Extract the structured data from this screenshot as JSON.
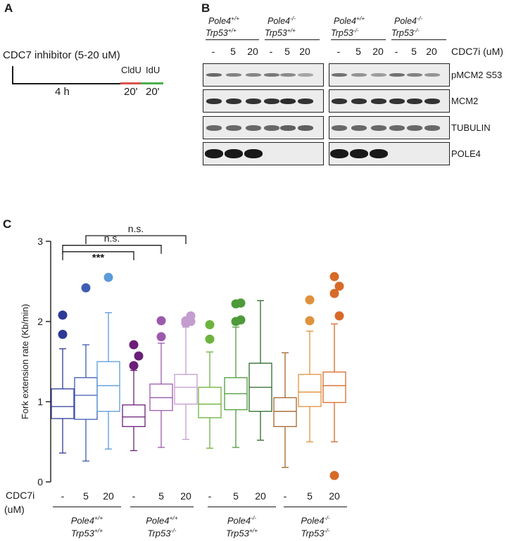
{
  "panel_a": {
    "letter": "A",
    "treatment_label": "CDC7 inhibitor (5-20 uM)",
    "duration_label": "4 h",
    "label_cldu": "CldU",
    "label_idu": "IdU",
    "pulse1": "20'",
    "pulse2": "20'",
    "colors": {
      "cldu": "#d9534f",
      "idu": "#4caf50"
    }
  },
  "panel_b": {
    "letter": "B",
    "genotypes": [
      {
        "pole": "Pole4",
        "pole_sup": "+/+",
        "trp": "Trp53",
        "trp_sup": "+/+"
      },
      {
        "pole": "Pole4",
        "pole_sup": "-/-",
        "trp": "Trp53",
        "trp_sup": "+/+"
      },
      {
        "pole": "Pole4",
        "pole_sup": "+/+",
        "trp": "Trp53",
        "trp_sup": "-/-"
      },
      {
        "pole": "Pole4",
        "pole_sup": "-/-",
        "trp": "Trp53",
        "trp_sup": "-/-"
      }
    ],
    "lanes": [
      "-",
      "5",
      "20",
      "-",
      "5",
      "20",
      "-",
      "5",
      "20",
      "-",
      "5",
      "20"
    ],
    "cdc7i_label": "CDC7i (uM)",
    "blots": [
      {
        "name": "pMCM2 S53",
        "intensities": [
          0.55,
          0.4,
          0.38,
          0.45,
          0.35,
          0.2,
          0.5,
          0.3,
          0.25,
          0.5,
          0.4,
          0.3
        ]
      },
      {
        "name": "MCM2",
        "intensities": [
          0.85,
          0.85,
          0.85,
          0.85,
          0.9,
          0.85,
          0.85,
          0.85,
          0.85,
          0.85,
          0.85,
          0.85
        ]
      },
      {
        "name": "TUBULIN",
        "intensities": [
          0.55,
          0.55,
          0.55,
          0.55,
          0.6,
          0.6,
          0.55,
          0.55,
          0.55,
          0.55,
          0.55,
          0.55
        ]
      },
      {
        "name": "POLE4",
        "intensities": [
          1.0,
          1.0,
          1.0,
          0.0,
          0.0,
          0.0,
          1.0,
          1.0,
          1.0,
          0.0,
          0.0,
          0.0
        ]
      }
    ]
  },
  "panel_c": {
    "letter": "C"
  },
  "chart_data": {
    "type": "boxplot",
    "ylabel": "Fork extension rate (Kb/min)",
    "ylim": [
      0,
      3
    ],
    "yticks": [
      0,
      1,
      2,
      3
    ],
    "x_row_label_1": "CDC7i",
    "x_row_label_2": "(uM)",
    "groups": [
      {
        "pole": "Pole4",
        "pole_sup": "+/+",
        "trp": "Trp53",
        "trp_sup": "+/+"
      },
      {
        "pole": "Pole4",
        "pole_sup": "+/+",
        "trp": "Trp53",
        "trp_sup": "-/-"
      },
      {
        "pole": "Pole4",
        "pole_sup": "-/-",
        "trp": "Trp53",
        "trp_sup": "+/+"
      },
      {
        "pole": "Pole4",
        "pole_sup": "-/-",
        "trp": "Trp53",
        "trp_sup": "-/-"
      }
    ],
    "series": [
      {
        "label": "-",
        "group": 0,
        "color": "#2e3a96",
        "q1": 0.79,
        "median": 0.94,
        "q3": 1.16,
        "whisker_low": 0.36,
        "whisker_high": 1.66,
        "outliers": [
          1.84,
          2.08
        ]
      },
      {
        "label": "5",
        "group": 0,
        "color": "#3f5bb5",
        "q1": 0.78,
        "median": 1.08,
        "q3": 1.3,
        "whisker_low": 0.26,
        "whisker_high": 1.71,
        "outliers": [
          2.42
        ]
      },
      {
        "label": "20",
        "group": 0,
        "color": "#5b9bd8",
        "q1": 0.88,
        "median": 1.2,
        "q3": 1.5,
        "whisker_low": 0.41,
        "whisker_high": 2.11,
        "outliers": [
          2.55
        ]
      },
      {
        "label": "-",
        "group": 1,
        "color": "#6b1f78",
        "q1": 0.69,
        "median": 0.81,
        "q3": 0.96,
        "whisker_low": 0.39,
        "whisker_high": 1.39,
        "outliers": [
          1.45,
          1.57,
          1.71
        ]
      },
      {
        "label": "5",
        "group": 1,
        "color": "#9c5aad",
        "q1": 0.89,
        "median": 1.05,
        "q3": 1.22,
        "whisker_low": 0.43,
        "whisker_high": 1.73,
        "outliers": [
          1.81,
          2.01
        ]
      },
      {
        "label": "20",
        "group": 1,
        "color": "#c39cd0",
        "q1": 0.97,
        "median": 1.18,
        "q3": 1.34,
        "whisker_low": 0.53,
        "whisker_high": 1.93,
        "outliers": [
          1.98,
          2.0,
          2.01,
          2.07
        ]
      },
      {
        "label": "-",
        "group": 2,
        "color": "#6cb33e",
        "q1": 0.8,
        "median": 0.97,
        "q3": 1.18,
        "whisker_low": 0.42,
        "whisker_high": 1.62,
        "outliers": [
          1.78,
          1.96
        ]
      },
      {
        "label": "5",
        "group": 2,
        "color": "#4e9a3a",
        "q1": 0.9,
        "median": 1.1,
        "q3": 1.3,
        "whisker_low": 0.43,
        "whisker_high": 1.93,
        "outliers": [
          2.0,
          2.02,
          2.22,
          2.23
        ]
      },
      {
        "label": "20",
        "group": 2,
        "color": "#2e6b2a",
        "q1": 0.88,
        "median": 1.18,
        "q3": 1.48,
        "whisker_low": 0.52,
        "whisker_high": 2.26,
        "outliers": []
      },
      {
        "label": "-",
        "group": 3,
        "color": "#a5652a",
        "q1": 0.69,
        "median": 0.88,
        "q3": 1.05,
        "whisker_low": 0.18,
        "whisker_high": 1.61,
        "outliers": []
      },
      {
        "label": "5",
        "group": 3,
        "color": "#e0913d",
        "q1": 0.94,
        "median": 1.12,
        "q3": 1.34,
        "whisker_low": 0.5,
        "whisker_high": 1.88,
        "outliers": [
          2.01,
          2.27
        ]
      },
      {
        "label": "20",
        "group": 3,
        "color": "#d76a28",
        "q1": 0.99,
        "median": 1.2,
        "q3": 1.37,
        "whisker_low": 0.5,
        "whisker_high": 1.97,
        "outliers": [
          0.08,
          2.07,
          2.35,
          2.44,
          2.56
        ]
      }
    ],
    "significance": [
      {
        "from": 0,
        "to": 3,
        "label": "***",
        "y": 2.87
      },
      {
        "from": 0,
        "to": 4,
        "label": "n.s.",
        "y": 2.95
      },
      {
        "from": 1,
        "to": 5,
        "label": "n.s.",
        "y": 3.07
      }
    ]
  }
}
